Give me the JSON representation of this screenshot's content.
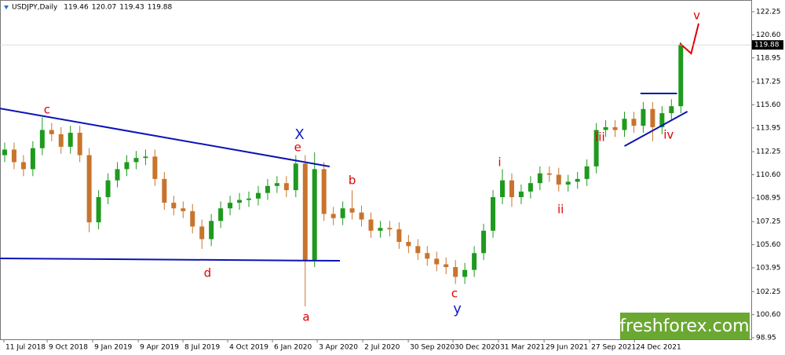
{
  "chart_data": {
    "type": "candlestick",
    "title": "USDJPY,Daily",
    "ohlc": [
      119.46,
      120.07,
      119.43,
      119.88
    ],
    "up_color": "#1e9a1e",
    "down_color": "#c8742c",
    "open": [
      112.0,
      112.4,
      111.5,
      111.0,
      112.5,
      113.8,
      113.5,
      112.6,
      113.6,
      112.0,
      107.2,
      109.0,
      110.2,
      111.0,
      111.5,
      111.8,
      111.9,
      110.3,
      108.6,
      108.2,
      108.0,
      106.9,
      106.0,
      107.3,
      108.2,
      108.6,
      108.8,
      108.9,
      109.3,
      109.8,
      110.0,
      109.5,
      111.4,
      104.5,
      111.0,
      107.8,
      107.5,
      108.2,
      107.9,
      107.4,
      106.6,
      106.8,
      106.7,
      105.8,
      105.5,
      105.0,
      104.6,
      104.2,
      104.0,
      103.3,
      103.8,
      105.0,
      106.6,
      109.0,
      110.2,
      109.0,
      109.4,
      110.0,
      110.7,
      110.6,
      109.9,
      110.1,
      110.3,
      111.2,
      113.8,
      114.0,
      113.8,
      114.6,
      114.1,
      115.3,
      114.0,
      115.0,
      115.5
    ],
    "high": [
      112.9,
      112.9,
      112.0,
      113.0,
      114.7,
      114.3,
      114.0,
      114.1,
      114.1,
      112.5,
      109.5,
      110.7,
      111.5,
      112.0,
      112.3,
      112.4,
      112.4,
      110.8,
      109.1,
      108.7,
      108.5,
      107.4,
      107.8,
      108.7,
      109.1,
      109.3,
      109.4,
      109.8,
      110.3,
      110.5,
      110.5,
      112.0,
      112.0,
      112.2,
      111.5,
      108.3,
      108.7,
      109.5,
      108.4,
      107.9,
      107.3,
      107.3,
      107.2,
      106.3,
      106.0,
      105.5,
      105.1,
      104.7,
      104.5,
      104.3,
      105.5,
      107.1,
      109.5,
      111.0,
      110.7,
      109.9,
      110.5,
      111.2,
      111.2,
      111.1,
      110.6,
      110.8,
      111.7,
      114.3,
      114.5,
      114.5,
      115.1,
      115.1,
      115.8,
      115.8,
      115.5,
      116.0,
      120.07
    ],
    "low": [
      111.5,
      111.0,
      110.5,
      110.5,
      112.0,
      113.0,
      112.1,
      112.1,
      111.5,
      106.5,
      106.7,
      108.5,
      109.7,
      110.5,
      111.0,
      111.3,
      109.8,
      108.1,
      107.7,
      107.5,
      106.4,
      105.3,
      105.5,
      106.8,
      107.7,
      108.1,
      108.3,
      108.4,
      108.8,
      109.3,
      109.0,
      109.0,
      101.2,
      104.0,
      107.3,
      107.0,
      107.0,
      107.4,
      106.9,
      106.1,
      106.1,
      106.2,
      105.3,
      105.0,
      104.5,
      104.1,
      103.7,
      103.5,
      102.8,
      102.8,
      103.3,
      104.5,
      106.1,
      108.5,
      108.3,
      108.5,
      108.9,
      109.5,
      110.1,
      109.4,
      109.4,
      109.6,
      109.8,
      110.7,
      113.3,
      113.3,
      113.3,
      113.6,
      113.6,
      113.0,
      113.5,
      114.5,
      115.0
    ],
    "close": [
      112.4,
      111.5,
      111.0,
      112.5,
      113.8,
      113.5,
      112.6,
      113.6,
      112.0,
      107.2,
      109.0,
      110.2,
      111.0,
      111.5,
      111.8,
      111.9,
      110.3,
      108.6,
      108.2,
      108.0,
      106.9,
      106.0,
      107.3,
      108.2,
      108.6,
      108.8,
      108.9,
      109.3,
      109.8,
      110.0,
      109.5,
      111.4,
      104.5,
      111.0,
      107.8,
      107.5,
      108.2,
      107.9,
      107.4,
      106.6,
      106.8,
      106.7,
      105.8,
      105.5,
      105.0,
      104.6,
      104.2,
      104.0,
      103.3,
      103.8,
      105.0,
      106.6,
      109.0,
      110.2,
      109.0,
      109.4,
      110.0,
      110.7,
      110.6,
      109.9,
      110.1,
      110.3,
      111.2,
      113.8,
      114.0,
      113.8,
      114.6,
      114.1,
      115.3,
      114.0,
      115.0,
      115.5,
      119.88
    ],
    "xlim": [
      -0.5,
      79.5
    ],
    "xticks": [
      {
        "value": -0.08,
        "label": "11 Jul 2018"
      },
      {
        "value": 4.52,
        "label": "9 Oct 2018"
      },
      {
        "value": 9.37,
        "label": "9 Jan 2019"
      },
      {
        "value": 14.22,
        "label": "9 Apr 2019"
      },
      {
        "value": 18.98,
        "label": "8 Jul 2019"
      },
      {
        "value": 23.75,
        "label": "4 Oct 2019"
      },
      {
        "value": 28.51,
        "label": "6 Jan 2020"
      },
      {
        "value": 33.28,
        "label": "3 Apr 2020"
      },
      {
        "value": 38.13,
        "label": "2 Jul 2020"
      },
      {
        "value": 42.98,
        "label": "30 Sep 2020"
      },
      {
        "value": 47.74,
        "label": "30 Dec 2020"
      },
      {
        "value": 52.59,
        "label": "31 Mar 2021"
      },
      {
        "value": 57.44,
        "label": "29 Jun 2021"
      },
      {
        "value": 62.29,
        "label": "27 Sep 2021"
      },
      {
        "value": 67.06,
        "label": "24 Dec 2021"
      }
    ],
    "ylim": [
      98.84,
      123.09
    ],
    "yticks": [
      122.25,
      {
        "value": 120.6,
        "label": "120.60"
      },
      118.95,
      117.25,
      {
        "value": 115.6,
        "label": "115.60"
      },
      113.95,
      112.25,
      {
        "value": 110.6,
        "label": "110.60"
      },
      108.95,
      107.25,
      {
        "value": 105.6,
        "label": "105.60"
      },
      103.95,
      102.25,
      {
        "value": 100.6,
        "label": "100.60"
      },
      98.95
    ],
    "trendlines": [
      {
        "color": "#0a14b4",
        "x": [
          -0.5,
          34.6
        ],
        "y": [
          115.34,
          111.19
        ]
      },
      {
        "color": "#0a14b4",
        "x": [
          -0.5,
          35.7
        ],
        "y": [
          104.62,
          104.45
        ]
      },
      {
        "color": "#0a14b4",
        "x": [
          67.7,
          71.6
        ],
        "y": [
          116.41,
          116.41
        ]
      },
      {
        "color": "#0a14b4",
        "x": [
          66.0,
          72.7
        ],
        "y": [
          112.65,
          115.12
        ]
      },
      {
        "color": "#e00000",
        "x": [
          71.9,
          73.1,
          73.9
        ],
        "y": [
          119.99,
          119.27,
          121.41
        ]
      }
    ],
    "annotations": [
      {
        "text": "c",
        "x": 4.5,
        "y": 115.23,
        "color": "#e00000"
      },
      {
        "text": "X",
        "x": 31.4,
        "y": 113.43,
        "color": "#1020c0"
      },
      {
        "text": "e",
        "x": 31.2,
        "y": 112.54,
        "color": "#e00000"
      },
      {
        "text": "b",
        "x": 37.0,
        "y": 110.18,
        "color": "#e00000"
      },
      {
        "text": "d",
        "x": 21.6,
        "y": 103.55,
        "color": "#e00000"
      },
      {
        "text": "a",
        "x": 32.1,
        "y": 100.41,
        "color": "#e00000"
      },
      {
        "text": "c",
        "x": 47.9,
        "y": 102.09,
        "color": "#e00000"
      },
      {
        "text": "y",
        "x": 48.2,
        "y": 100.97,
        "color": "#1020c0"
      },
      {
        "text": "i",
        "x": 52.7,
        "y": 111.47,
        "color": "#e00000"
      },
      {
        "text": "ii",
        "x": 59.2,
        "y": 108.1,
        "color": "#e00000"
      },
      {
        "text": "iii",
        "x": 63.4,
        "y": 113.27,
        "color": "#e00000"
      },
      {
        "text": "iv",
        "x": 70.7,
        "y": 113.43,
        "color": "#e00000"
      },
      {
        "text": "v",
        "x": 73.7,
        "y": 121.97,
        "color": "#e00000"
      }
    ],
    "watermark": "freshforex.com"
  }
}
